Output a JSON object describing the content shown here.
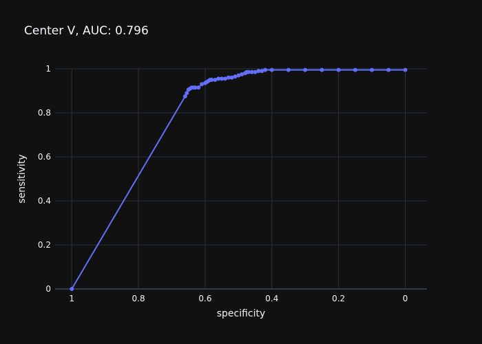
{
  "chart_data": {
    "type": "line",
    "title": "Center V, AUC: 0.796",
    "xlabel": "specificity",
    "ylabel": "sensitivity",
    "x_reversed": true,
    "xlim": [
      1.05,
      -0.065
    ],
    "ylim": [
      0,
      1
    ],
    "x_ticks": [
      1,
      0.8,
      0.6,
      0.4,
      0.2,
      0
    ],
    "x_tick_labels": [
      "1",
      "0.8",
      "0.6",
      "0.4",
      "0.2",
      "0"
    ],
    "y_ticks": [
      0,
      0.2,
      0.4,
      0.6,
      0.8,
      1
    ],
    "y_tick_labels": [
      "0",
      "0.2",
      "0.4",
      "0.6",
      "0.8",
      "1"
    ],
    "grid": true,
    "colors": {
      "background": "#111111",
      "line": "#636efa",
      "grid": "#283442",
      "text": "#f2f5fa"
    },
    "series": [
      {
        "mode": "lines+markers",
        "x": [
          1.0,
          0.66,
          0.655,
          0.65,
          0.645,
          0.64,
          0.635,
          0.63,
          0.62,
          0.61,
          0.6,
          0.595,
          0.59,
          0.585,
          0.58,
          0.57,
          0.56,
          0.55,
          0.54,
          0.53,
          0.52,
          0.51,
          0.5,
          0.49,
          0.48,
          0.475,
          0.47,
          0.46,
          0.45,
          0.44,
          0.43,
          0.42,
          0.4,
          0.35,
          0.3,
          0.25,
          0.2,
          0.15,
          0.1,
          0.05,
          0.0
        ],
        "y": [
          0.0,
          0.875,
          0.89,
          0.905,
          0.91,
          0.915,
          0.915,
          0.915,
          0.915,
          0.93,
          0.935,
          0.94,
          0.945,
          0.95,
          0.95,
          0.95,
          0.955,
          0.955,
          0.955,
          0.96,
          0.96,
          0.965,
          0.97,
          0.975,
          0.98,
          0.985,
          0.985,
          0.985,
          0.985,
          0.99,
          0.99,
          0.995,
          0.995,
          0.995,
          0.995,
          0.995,
          0.995,
          0.995,
          0.995,
          0.995,
          0.995
        ]
      }
    ]
  }
}
